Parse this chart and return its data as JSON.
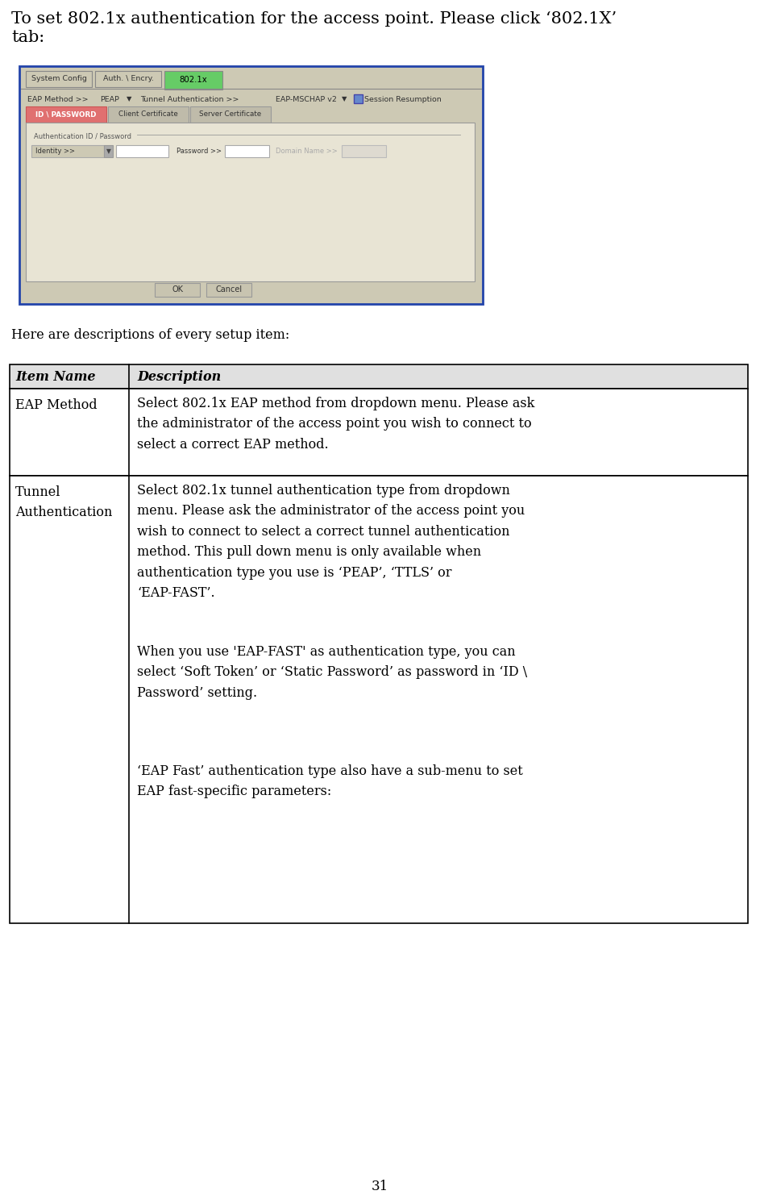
{
  "title_line1": "To set 802.1x authentication for the access point. Please click ‘802.1X’",
  "title_line2": "tab:",
  "intro_text": "Here are descriptions of every setup item:",
  "page_number": "31",
  "bg_color": "#ffffff",
  "table_header_bg": "#e0e0e0",
  "table_border_color": "#000000",
  "header_row": [
    "Item Name",
    "Description"
  ],
  "screenshot_bg": "#cdc9b4",
  "screenshot_border": "#2244aa",
  "tab_active_color": "#66cc66",
  "tab_inactive_color": "#cdc9b4",
  "id_password_tab_color": "#e07070",
  "input_box_color": "#ffffff",
  "text_color": "#000000",
  "font_family": "DejaVu Serif",
  "title_fontsize": 15,
  "body_fontsize": 11.5,
  "table_fontsize": 11.5
}
